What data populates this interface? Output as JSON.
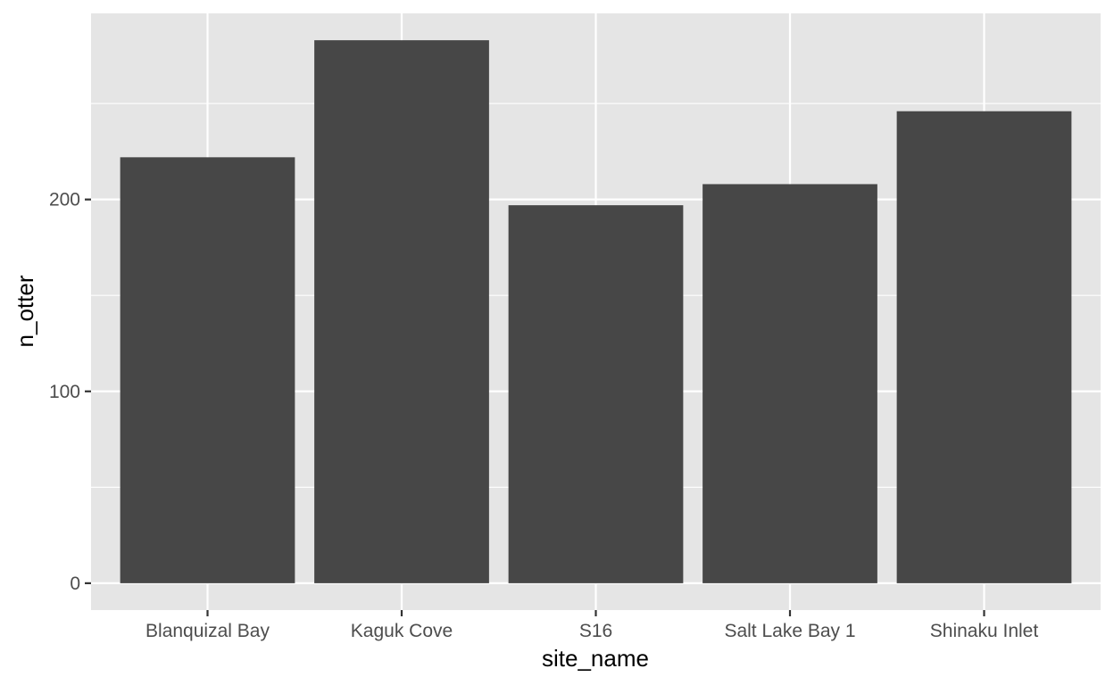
{
  "chart_data": {
    "type": "bar",
    "categories": [
      "Blanquizal Bay",
      "Kaguk Cove",
      "S16",
      "Salt Lake Bay 1",
      "Shinaku Inlet"
    ],
    "values": [
      222,
      283,
      197,
      208,
      246
    ],
    "xlabel": "site_name",
    "ylabel": "n_otter",
    "ylim": [
      -14,
      297
    ],
    "yticks": [
      0,
      100,
      200
    ],
    "y_minor_ticks": [
      50,
      150,
      250
    ],
    "grid": true,
    "colors": {
      "bar": "#474747",
      "panel": "#e5e5e5",
      "grid": "#ffffff",
      "tick_text": "#4d4d4d",
      "tick_mark": "#333333"
    }
  }
}
